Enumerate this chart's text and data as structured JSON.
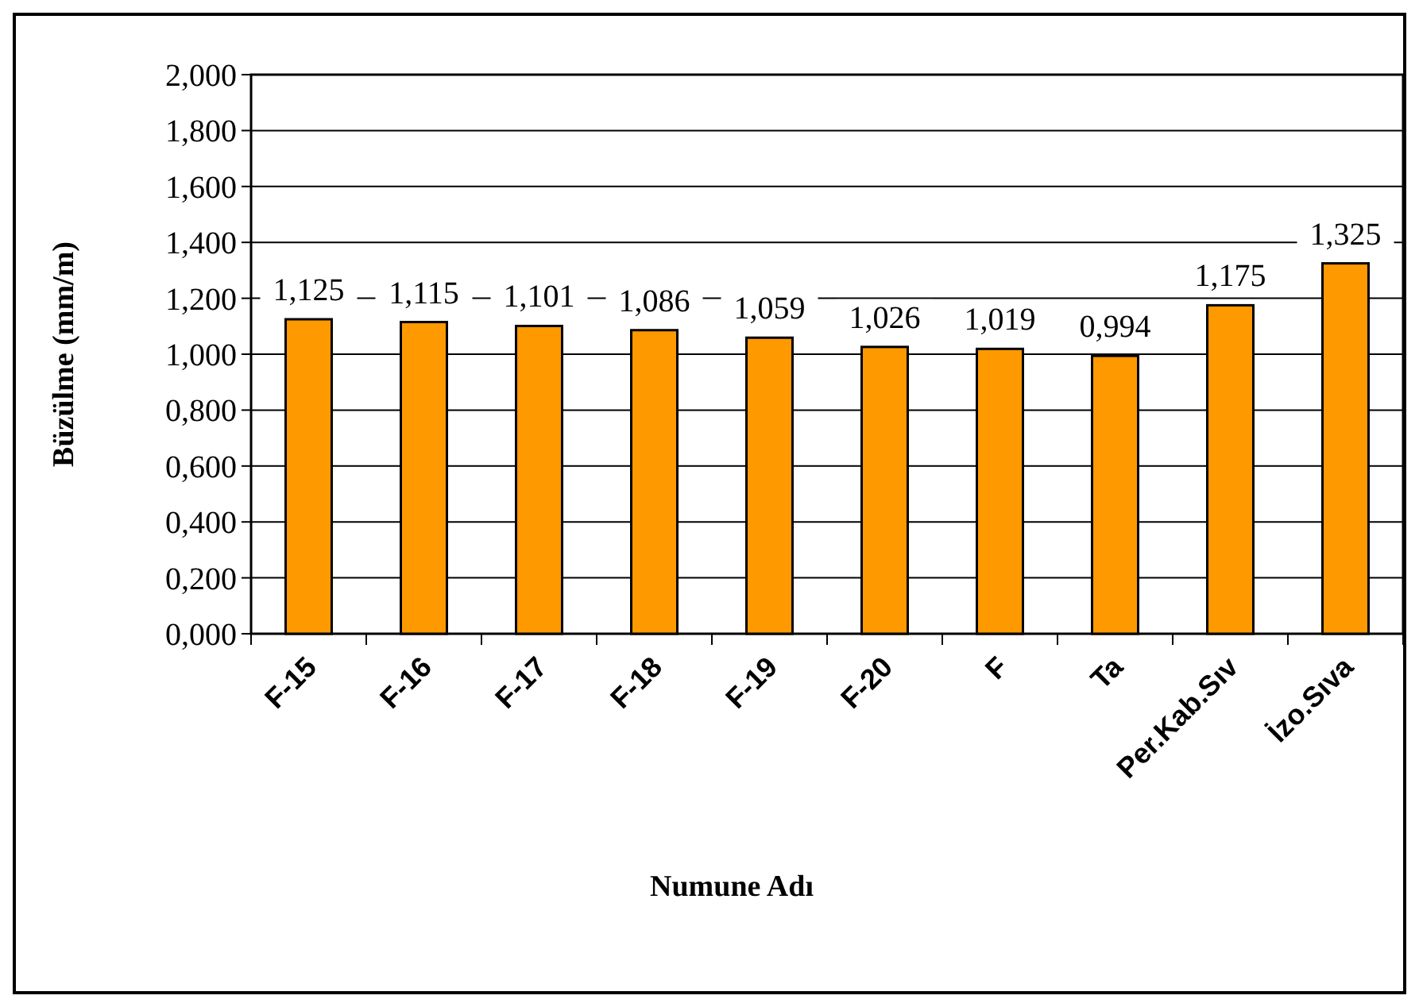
{
  "chart_data": {
    "type": "bar",
    "xlabel": "Numune Adı",
    "ylabel": "Büzülme (mm/m)",
    "categories": [
      "F-15",
      "F-16",
      "F-17",
      "F-18",
      "F-19",
      "F-20",
      "F",
      "Ta",
      "Per.Kab.Sıv",
      "İzo.Sıva"
    ],
    "values": [
      1.125,
      1.115,
      1.101,
      1.086,
      1.059,
      1.026,
      1.019,
      0.994,
      1.175,
      1.325
    ],
    "value_labels": [
      "1,125",
      "1,115",
      "1,101",
      "1,086",
      "1,059",
      "1,026",
      "1,019",
      "0,994",
      "1,175",
      "1,325"
    ],
    "color": "#ff9900",
    "ylim": [
      0,
      2
    ],
    "yticks": [
      {
        "value": 0,
        "label": "0,000"
      },
      {
        "value": 0.2,
        "label": "0,200"
      },
      {
        "value": 0.4,
        "label": "0,400"
      },
      {
        "value": 0.6,
        "label": "0,600"
      },
      {
        "value": 0.8,
        "label": "0,800"
      },
      {
        "value": 1,
        "label": "1,000"
      },
      {
        "value": 1.2,
        "label": "1,200"
      },
      {
        "value": 1.4,
        "label": "1,400"
      },
      {
        "value": 1.6,
        "label": "1,600"
      },
      {
        "value": 1.8,
        "label": "1,800"
      },
      {
        "value": 2,
        "label": "2,000"
      }
    ],
    "grid": "y"
  }
}
